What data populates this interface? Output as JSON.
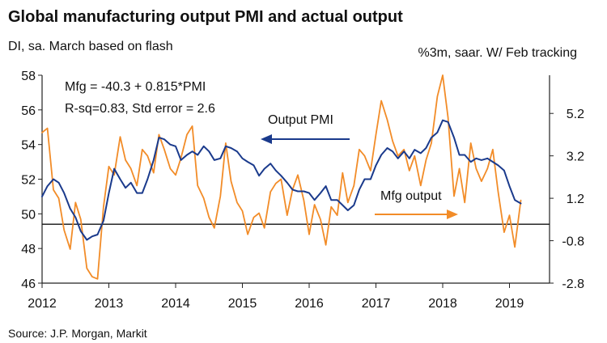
{
  "chart_data": {
    "type": "line",
    "title": "Global manufacturing output PMI and actual output",
    "subtitle_left": "DI, sa. March based on flash",
    "subtitle_right": "%3m, saar. W/ Feb tracking",
    "source": "Source: J.P. Morgan, Markit",
    "equation_line1": "Mfg = -40.3 + 0.815*PMI",
    "equation_line2": "R-sq=0.83, Std error = 2.6",
    "xlim": [
      2012,
      2019.6
    ],
    "x_ticks": [
      2012,
      2013,
      2014,
      2015,
      2016,
      2017,
      2018,
      2019
    ],
    "x_tick_labels": [
      "2012",
      "2013",
      "2014",
      "2015",
      "2016",
      "2017",
      "2018",
      "2019"
    ],
    "left_axis": {
      "range": [
        46,
        58
      ],
      "ticks": [
        46,
        48,
        50,
        52,
        54,
        56,
        58
      ],
      "tick_labels": [
        "46",
        "48",
        "50",
        "52",
        "54",
        "56",
        "58"
      ]
    },
    "right_axis": {
      "range": [
        -2.8,
        7.0
      ],
      "ticks": [
        -2.8,
        -0.8,
        1.2,
        3.2,
        5.2
      ],
      "tick_labels": [
        "-2.8",
        "-0.8",
        "1.2",
        "3.2",
        "5.2"
      ]
    },
    "reference_line_left_value": 49.4,
    "series": [
      {
        "name": "Output PMI",
        "axis": "left",
        "color": "#1a3a8c",
        "label": "Output PMI",
        "label_arrow": "left",
        "x": [
          2012.0,
          2012.08,
          2012.17,
          2012.25,
          2012.33,
          2012.42,
          2012.5,
          2012.58,
          2012.67,
          2012.75,
          2012.83,
          2012.92,
          2013.0,
          2013.08,
          2013.17,
          2013.25,
          2013.33,
          2013.42,
          2013.5,
          2013.58,
          2013.67,
          2013.75,
          2013.83,
          2013.92,
          2014.0,
          2014.08,
          2014.17,
          2014.25,
          2014.33,
          2014.42,
          2014.5,
          2014.58,
          2014.67,
          2014.75,
          2014.83,
          2014.92,
          2015.0,
          2015.08,
          2015.17,
          2015.25,
          2015.33,
          2015.42,
          2015.5,
          2015.58,
          2015.67,
          2015.75,
          2015.83,
          2015.92,
          2016.0,
          2016.08,
          2016.17,
          2016.25,
          2016.33,
          2016.42,
          2016.5,
          2016.58,
          2016.67,
          2016.75,
          2016.83,
          2016.92,
          2017.0,
          2017.08,
          2017.17,
          2017.25,
          2017.33,
          2017.42,
          2017.5,
          2017.58,
          2017.67,
          2017.75,
          2017.83,
          2017.92,
          2018.0,
          2018.08,
          2018.17,
          2018.25,
          2018.33,
          2018.42,
          2018.5,
          2018.58,
          2018.67,
          2018.75,
          2018.83,
          2018.92,
          2019.0,
          2019.08,
          2019.17
        ],
        "values": [
          51.0,
          51.6,
          52.0,
          51.8,
          51.2,
          50.3,
          49.8,
          49.0,
          48.5,
          48.7,
          48.8,
          49.6,
          51.2,
          52.6,
          52.0,
          51.5,
          51.8,
          51.2,
          51.2,
          52.0,
          53.1,
          54.4,
          54.3,
          54.0,
          53.9,
          53.1,
          53.4,
          53.6,
          53.4,
          53.9,
          53.6,
          53.1,
          53.2,
          53.9,
          53.8,
          53.6,
          53.2,
          53.0,
          52.8,
          52.2,
          52.6,
          52.9,
          52.5,
          52.2,
          51.8,
          51.4,
          51.3,
          51.3,
          51.2,
          50.8,
          51.2,
          51.6,
          50.8,
          50.8,
          50.5,
          50.2,
          50.5,
          51.4,
          52.0,
          52.0,
          52.8,
          53.4,
          53.8,
          53.6,
          53.2,
          53.6,
          53.2,
          53.7,
          53.5,
          53.8,
          54.4,
          54.7,
          55.4,
          55.3,
          54.4,
          53.4,
          53.4,
          53.0,
          53.2,
          53.1,
          53.2,
          53.0,
          52.8,
          52.5,
          51.6,
          50.8,
          50.6
        ]
      },
      {
        "name": "Mfg output",
        "axis": "right",
        "color": "#f28c28",
        "label": "Mfg output",
        "label_arrow": "right",
        "x": [
          2012.0,
          2012.08,
          2012.17,
          2012.25,
          2012.33,
          2012.42,
          2012.5,
          2012.58,
          2012.67,
          2012.75,
          2012.83,
          2012.92,
          2013.0,
          2013.08,
          2013.17,
          2013.25,
          2013.33,
          2013.42,
          2013.5,
          2013.58,
          2013.67,
          2013.75,
          2013.83,
          2013.92,
          2014.0,
          2014.08,
          2014.17,
          2014.25,
          2014.33,
          2014.42,
          2014.5,
          2014.58,
          2014.67,
          2014.75,
          2014.83,
          2014.92,
          2015.0,
          2015.08,
          2015.17,
          2015.25,
          2015.33,
          2015.42,
          2015.5,
          2015.58,
          2015.67,
          2015.75,
          2015.83,
          2015.92,
          2016.0,
          2016.08,
          2016.17,
          2016.25,
          2016.33,
          2016.42,
          2016.5,
          2016.58,
          2016.67,
          2016.75,
          2016.83,
          2016.92,
          2017.0,
          2017.08,
          2017.17,
          2017.25,
          2017.33,
          2017.42,
          2017.5,
          2017.58,
          2017.67,
          2017.75,
          2017.83,
          2017.92,
          2018.0,
          2018.08,
          2018.17,
          2018.25,
          2018.33,
          2018.42,
          2018.5,
          2018.58,
          2018.67,
          2018.75,
          2018.83,
          2018.92,
          2019.0,
          2019.08,
          2019.17
        ],
        "values": [
          4.3,
          4.5,
          1.6,
          1.2,
          -0.3,
          -1.2,
          1.0,
          0.2,
          -2.1,
          -2.5,
          -2.6,
          0.8,
          2.7,
          2.3,
          4.1,
          3.0,
          2.6,
          1.8,
          3.5,
          3.2,
          2.4,
          4.2,
          3.5,
          2.6,
          2.3,
          3.1,
          4.2,
          4.6,
          1.8,
          1.2,
          0.3,
          -0.2,
          1.3,
          3.8,
          2.0,
          1.0,
          0.6,
          -0.5,
          0.3,
          0.5,
          -0.2,
          1.5,
          1.9,
          2.1,
          0.4,
          1.6,
          2.3,
          1.1,
          -0.5,
          0.9,
          0.2,
          -1.0,
          0.8,
          0.4,
          2.4,
          1.0,
          1.8,
          3.5,
          3.2,
          2.5,
          4.2,
          5.8,
          4.9,
          3.9,
          3.2,
          3.5,
          2.5,
          3.2,
          1.8,
          3.0,
          3.8,
          6.0,
          7.0,
          5.0,
          1.3,
          2.6,
          1.0,
          3.8,
          2.6,
          2.0,
          2.6,
          3.5,
          1.5,
          -0.4,
          0.4,
          -1.1,
          1.1
        ]
      }
    ]
  }
}
